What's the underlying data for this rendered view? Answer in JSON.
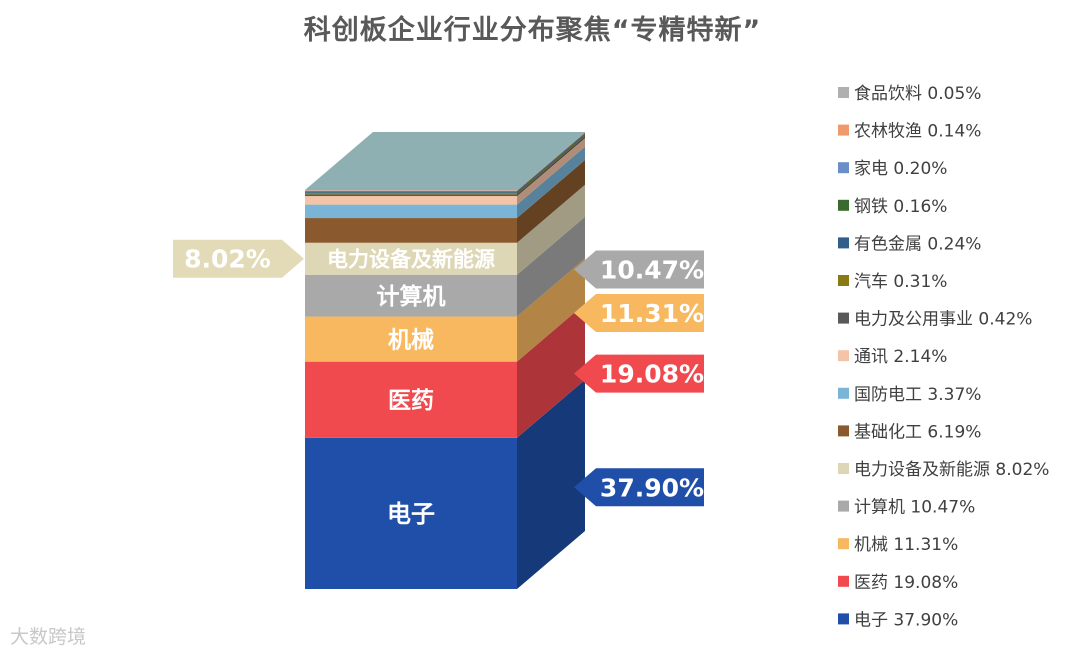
{
  "chart_data": {
    "type": "bar",
    "title": "科创板企业行业分布聚焦“专精特新”",
    "legend_position": "right",
    "series": [
      {
        "name": "电子",
        "value": 37.9,
        "display": "37.90%",
        "color": "#1f4fa8",
        "bar_label": "电子",
        "callout_side": "right",
        "callout_bg": "#1f4fa8",
        "callout_fg": "#ffffff"
      },
      {
        "name": "医药",
        "value": 19.08,
        "display": "19.08%",
        "color": "#f04a4f",
        "bar_label": "医药",
        "callout_side": "right",
        "callout_bg": "#f04a4f",
        "callout_fg": "#ffffff"
      },
      {
        "name": "机械",
        "value": 11.31,
        "display": "11.31%",
        "color": "#f7b860",
        "bar_label": "机械",
        "callout_side": "right",
        "callout_bg": "#f7b860",
        "callout_fg": "#ffffff"
      },
      {
        "name": "计算机",
        "value": 10.47,
        "display": "10.47%",
        "color": "#a9a9a9",
        "bar_label": "计算机",
        "callout_side": "right",
        "callout_bg": "#a9a9a9",
        "callout_fg": "#ffffff"
      },
      {
        "name": "电力设备及新能源",
        "value": 8.02,
        "display": "8.02%",
        "color": "#ded7b5",
        "bar_label": "电力设备及新能源",
        "callout_side": "left",
        "callout_bg": "#e3dbb8",
        "callout_fg": "#ffffff"
      },
      {
        "name": "基础化工",
        "value": 6.19,
        "display": "6.19%",
        "color": "#8a5a2e"
      },
      {
        "name": "国防电工",
        "value": 3.37,
        "display": "3.37%",
        "color": "#7ab5d8"
      },
      {
        "name": "通讯",
        "value": 2.14,
        "display": "2.14%",
        "color": "#f4c4a8"
      },
      {
        "name": "电力及公用事业",
        "value": 0.42,
        "display": "0.42%",
        "color": "#595959"
      },
      {
        "name": "汽车",
        "value": 0.31,
        "display": "0.31%",
        "color": "#8a7a16"
      },
      {
        "name": "有色金属",
        "value": 0.24,
        "display": "0.24%",
        "color": "#2f5f8a"
      },
      {
        "name": "钢铁",
        "value": 0.16,
        "display": "0.16%",
        "color": "#3a6b2e"
      },
      {
        "name": "家电",
        "value": 0.2,
        "display": "0.20%",
        "color": "#6a8ec8"
      },
      {
        "name": "农林牧渔",
        "value": 0.14,
        "display": "0.14%",
        "color": "#ef9a6a"
      },
      {
        "name": "食品饮料",
        "value": 0.05,
        "display": "0.05%",
        "color": "#b0b0b0"
      }
    ],
    "top_face_color": "#8fb0b2"
  },
  "watermark": "大数跨境"
}
